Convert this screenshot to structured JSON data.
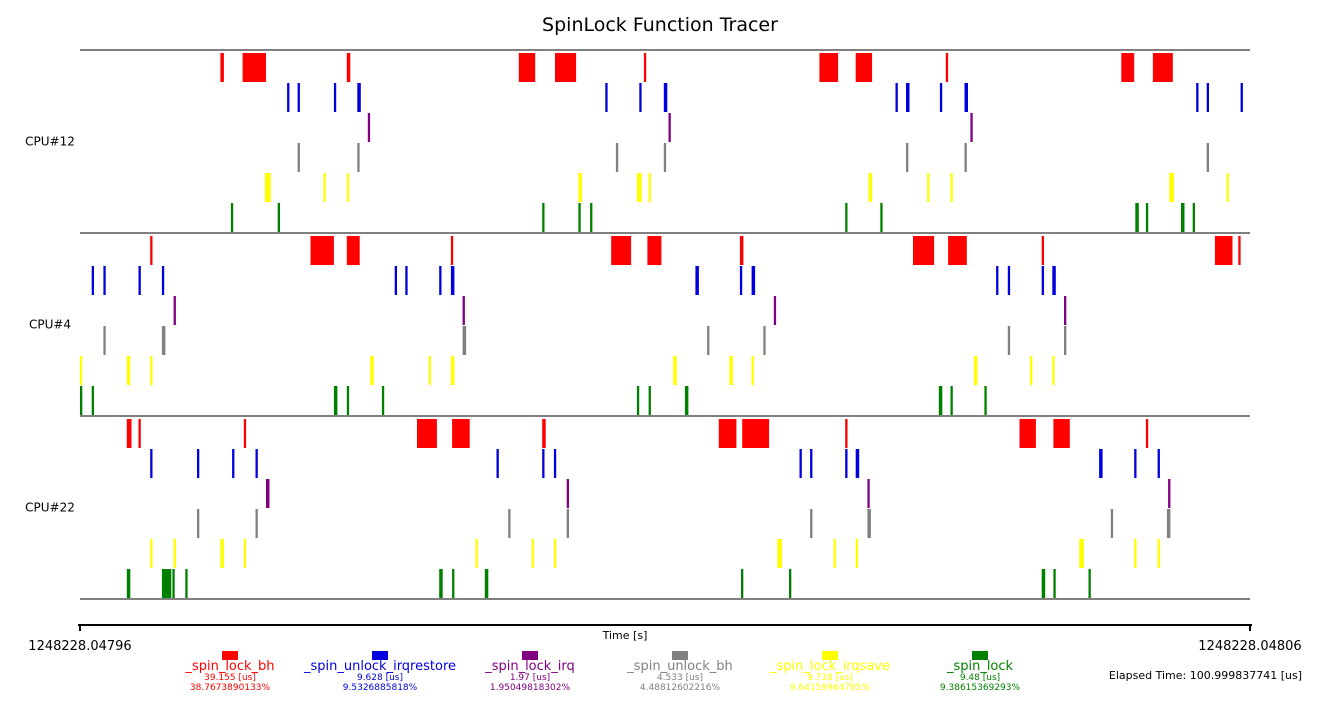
{
  "chart_data": {
    "type": "timeline",
    "title": "SpinLock Function Tracer",
    "xlabel": "Time [s]",
    "x_start_label": "1248228.04796",
    "x_end_label": "1248228.04806",
    "elapsed_text": "Elapsed Time: 100.999837741 [us]",
    "xlim": [
      0,
      100
    ],
    "functions": [
      {
        "name": "_spin_lock_bh",
        "color": "#ff0000",
        "time": "39.155 [us]",
        "percent": "38.7673890133%"
      },
      {
        "name": "_spin_unlock_irqrestore",
        "color": "#0000dd",
        "time": "9.628 [us]",
        "percent": "9.5326885818%"
      },
      {
        "name": "_spin_lock_irq",
        "color": "#800080",
        "time": "1.97 [us]",
        "percent": "1.95049818302%"
      },
      {
        "name": "_spin_unlock_bh",
        "color": "#808080",
        "time": "4.533 [us]",
        "percent": "4.48812602216%"
      },
      {
        "name": "_spin_lock_irqsave",
        "color": "#ffff00",
        "time": "9.738 [us]",
        "percent": "9.64159964785%"
      },
      {
        "name": "_spin_lock",
        "color": "#008000",
        "time": "9.48 [us]",
        "percent": "9.38615369293%"
      }
    ],
    "cpus": [
      {
        "label": "CPU#12",
        "events": [
          [
            [
              12.0,
              0.3
            ],
            [
              13.9,
              2.0
            ],
            [
              22.8,
              0.3
            ],
            [
              37.5,
              1.4
            ],
            [
              40.6,
              1.8
            ],
            [
              48.2,
              0.2
            ],
            [
              63.2,
              1.6
            ],
            [
              66.3,
              1.4
            ],
            [
              74.0,
              0.2
            ],
            [
              89.0,
              1.1
            ],
            [
              91.7,
              1.7
            ]
          ],
          [
            [
              17.7,
              0.2
            ],
            [
              18.6,
              0.2
            ],
            [
              21.7,
              0.2
            ],
            [
              23.7,
              0.3
            ],
            [
              44.9,
              0.2
            ],
            [
              47.8,
              0.2
            ],
            [
              49.9,
              0.3
            ],
            [
              69.7,
              0.2
            ],
            [
              70.6,
              0.3
            ],
            [
              73.5,
              0.2
            ],
            [
              75.6,
              0.3
            ],
            [
              95.4,
              0.2
            ],
            [
              96.3,
              0.2
            ],
            [
              99.2,
              0.2
            ]
          ],
          [
            [
              24.6,
              0.2
            ],
            [
              50.3,
              0.2
            ],
            [
              76.1,
              0.2
            ]
          ],
          [
            [
              18.6,
              0.2
            ],
            [
              23.7,
              0.2
            ],
            [
              45.8,
              0.2
            ],
            [
              49.9,
              0.2
            ],
            [
              70.6,
              0.2
            ],
            [
              75.6,
              0.2
            ],
            [
              96.3,
              0.2
            ]
          ],
          [
            [
              15.8,
              0.5
            ],
            [
              20.8,
              0.2
            ],
            [
              22.8,
              0.2
            ],
            [
              42.6,
              0.3
            ],
            [
              47.6,
              0.4
            ],
            [
              48.6,
              0.2
            ],
            [
              67.4,
              0.3
            ],
            [
              72.4,
              0.2
            ],
            [
              74.4,
              0.2
            ],
            [
              93.1,
              0.4
            ],
            [
              98.0,
              0.2
            ]
          ],
          [
            [
              12.9,
              0.2
            ],
            [
              16.9,
              0.2
            ],
            [
              39.5,
              0.2
            ],
            [
              42.6,
              0.2
            ],
            [
              43.6,
              0.2
            ],
            [
              65.4,
              0.2
            ],
            [
              68.4,
              0.2
            ],
            [
              90.2,
              0.3
            ],
            [
              91.1,
              0.2
            ],
            [
              94.1,
              0.3
            ],
            [
              95.1,
              0.2
            ]
          ]
        ]
      },
      {
        "label": "CPU#4",
        "events": [
          [
            [
              6.0,
              0.2
            ],
            [
              19.7,
              2.0
            ],
            [
              22.8,
              1.1
            ],
            [
              31.7,
              0.2
            ],
            [
              45.4,
              1.7
            ],
            [
              48.5,
              1.2
            ],
            [
              56.4,
              0.3
            ],
            [
              71.2,
              1.8
            ],
            [
              74.2,
              1.6
            ],
            [
              82.2,
              0.2
            ],
            [
              97.0,
              1.5
            ],
            [
              99.0,
              0.2
            ]
          ],
          [
            [
              1.0,
              0.2
            ],
            [
              2.0,
              0.2
            ],
            [
              5.0,
              0.2
            ],
            [
              7.0,
              0.2
            ],
            [
              26.9,
              0.2
            ],
            [
              27.8,
              0.2
            ],
            [
              30.7,
              0.2
            ],
            [
              31.7,
              0.3
            ],
            [
              52.6,
              0.3
            ],
            [
              56.4,
              0.2
            ],
            [
              57.4,
              0.3
            ],
            [
              78.3,
              0.2
            ],
            [
              79.3,
              0.2
            ],
            [
              82.2,
              0.2
            ],
            [
              83.1,
              0.3
            ]
          ],
          [
            [
              8.0,
              0.2
            ],
            [
              32.7,
              0.2
            ],
            [
              59.3,
              0.2
            ],
            [
              84.1,
              0.2
            ]
          ],
          [
            [
              2.0,
              0.2
            ],
            [
              7.0,
              0.3
            ],
            [
              32.7,
              0.3
            ],
            [
              53.6,
              0.2
            ],
            [
              58.4,
              0.2
            ],
            [
              79.3,
              0.2
            ],
            [
              84.1,
              0.2
            ]
          ],
          [
            [
              0.0,
              0.2
            ],
            [
              4.0,
              0.3
            ],
            [
              6.0,
              0.2
            ],
            [
              24.8,
              0.3
            ],
            [
              29.8,
              0.2
            ],
            [
              31.7,
              0.3
            ],
            [
              50.7,
              0.3
            ],
            [
              55.5,
              0.3
            ],
            [
              57.4,
              0.2
            ],
            [
              76.4,
              0.3
            ],
            [
              81.2,
              0.2
            ],
            [
              83.1,
              0.2
            ]
          ],
          [
            [
              0.0,
              0.2
            ],
            [
              1.0,
              0.2
            ],
            [
              21.7,
              0.3
            ],
            [
              22.8,
              0.2
            ],
            [
              25.8,
              0.2
            ],
            [
              47.6,
              0.2
            ],
            [
              48.6,
              0.2
            ],
            [
              51.7,
              0.3
            ],
            [
              73.4,
              0.3
            ],
            [
              74.4,
              0.2
            ],
            [
              77.3,
              0.2
            ]
          ]
        ]
      },
      {
        "label": "CPU#22",
        "events": [
          [
            [
              4.0,
              0.4
            ],
            [
              5.0,
              0.2
            ],
            [
              14.0,
              0.2
            ],
            [
              28.8,
              1.7
            ],
            [
              31.8,
              1.5
            ],
            [
              39.5,
              0.3
            ],
            [
              54.6,
              1.5
            ],
            [
              56.6,
              2.3
            ],
            [
              65.4,
              0.2
            ],
            [
              80.3,
              1.4
            ],
            [
              83.2,
              1.4
            ],
            [
              91.1,
              0.2
            ]
          ],
          [
            [
              6.0,
              0.2
            ],
            [
              10.0,
              0.2
            ],
            [
              13.0,
              0.2
            ],
            [
              15.0,
              0.2
            ],
            [
              35.6,
              0.2
            ],
            [
              39.5,
              0.2
            ],
            [
              40.5,
              0.2
            ],
            [
              61.5,
              0.2
            ],
            [
              62.4,
              0.2
            ],
            [
              65.4,
              0.2
            ],
            [
              66.3,
              0.3
            ],
            [
              87.1,
              0.3
            ],
            [
              90.1,
              0.2
            ],
            [
              92.1,
              0.2
            ]
          ],
          [
            [
              15.9,
              0.3
            ],
            [
              41.6,
              0.2
            ],
            [
              67.3,
              0.2
            ],
            [
              93.0,
              0.2
            ]
          ],
          [
            [
              10.0,
              0.2
            ],
            [
              15.0,
              0.2
            ],
            [
              36.6,
              0.2
            ],
            [
              41.6,
              0.2
            ],
            [
              62.4,
              0.2
            ],
            [
              67.3,
              0.3
            ],
            [
              88.1,
              0.2
            ],
            [
              92.9,
              0.3
            ]
          ],
          [
            [
              6.0,
              0.2
            ],
            [
              8.0,
              0.2
            ],
            [
              12.0,
              0.3
            ],
            [
              14.0,
              0.2
            ],
            [
              33.8,
              0.2
            ],
            [
              38.6,
              0.2
            ],
            [
              40.5,
              0.2
            ],
            [
              59.6,
              0.4
            ],
            [
              64.4,
              0.2
            ],
            [
              66.3,
              0.2
            ],
            [
              85.4,
              0.4
            ],
            [
              90.1,
              0.2
            ],
            [
              92.1,
              0.2
            ]
          ],
          [
            [
              4.0,
              0.3
            ],
            [
              7.0,
              0.8
            ],
            [
              7.9,
              0.2
            ],
            [
              9.0,
              0.2
            ],
            [
              30.7,
              0.3
            ],
            [
              31.8,
              0.2
            ],
            [
              34.6,
              0.3
            ],
            [
              56.5,
              0.2
            ],
            [
              60.6,
              0.2
            ],
            [
              82.2,
              0.3
            ],
            [
              83.2,
              0.2
            ],
            [
              86.2,
              0.2
            ]
          ]
        ]
      }
    ]
  }
}
